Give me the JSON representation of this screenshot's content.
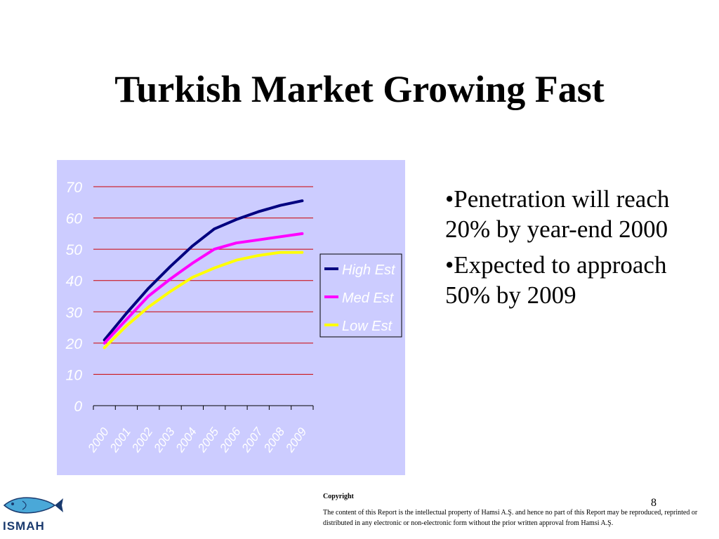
{
  "slide": {
    "title": "Turkish Market Growing Fast",
    "bullets": [
      "•Penetration will reach 20% by year-end 2000",
      "•Expected to approach 50% by 2009"
    ],
    "page_number": "8",
    "logo_text": "ISMAH",
    "copyright_heading": "Copyright",
    "copyright_text": "The content of this Report is the intellectual property of Hamsi A.Ş. and hence no part of this Report may be reproduced, reprinted or distributed in any electronic or non-electronic form without the prior written approval from Hamsi A.Ş."
  },
  "colors": {
    "plot_background": "#ccccff",
    "gridline": "#cc0000",
    "axis_text": "#ffffff",
    "high_est": "#000080",
    "med_est": "#ff00ff",
    "low_est": "#ffff00"
  },
  "chart_data": {
    "type": "line",
    "x": [
      "2000",
      "2001",
      "2002",
      "2003",
      "2004",
      "2005",
      "2006",
      "2007",
      "2008",
      "2009"
    ],
    "series": [
      {
        "name": "High Est",
        "values": [
          21,
          29.5,
          37.5,
          44.5,
          51,
          56.5,
          59.5,
          62,
          64,
          65.5
        ]
      },
      {
        "name": "Med Est",
        "values": [
          20,
          27.5,
          35,
          40.5,
          45.5,
          50,
          52,
          53,
          54,
          55
        ]
      },
      {
        "name": "Low Est",
        "values": [
          18.5,
          25.5,
          31.5,
          36.5,
          41,
          44,
          46.5,
          48,
          49,
          49
        ]
      }
    ],
    "ylim": [
      0,
      70
    ],
    "yticks": [
      "0",
      "10",
      "20",
      "30",
      "40",
      "50",
      "60",
      "70"
    ],
    "grid": true,
    "legend": "right"
  }
}
